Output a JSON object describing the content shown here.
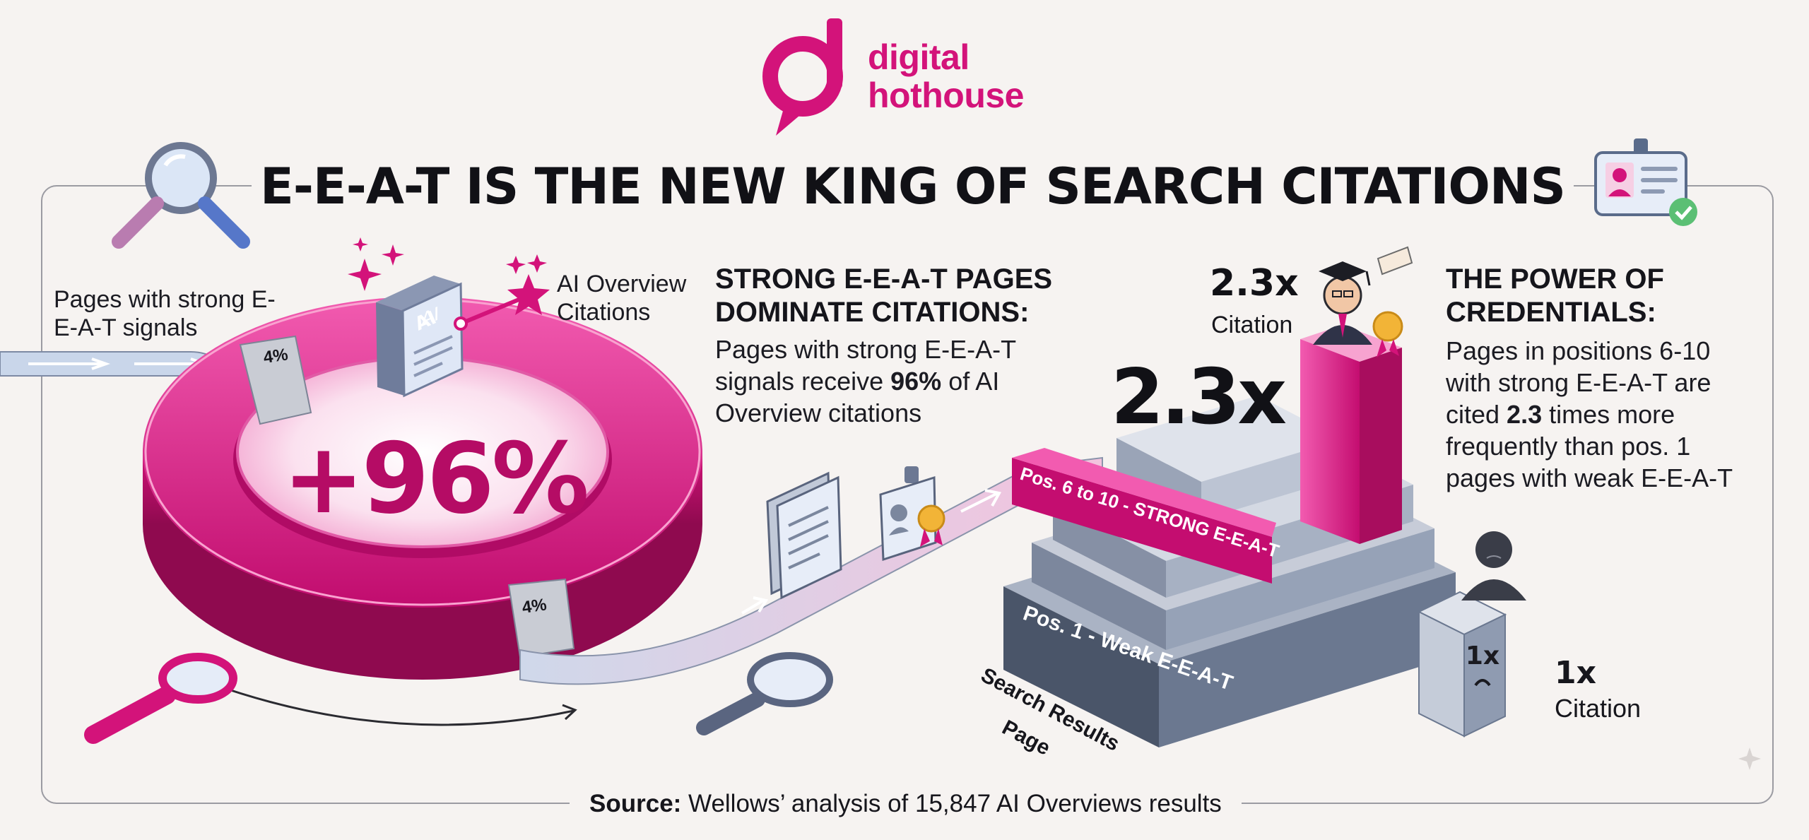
{
  "brand": {
    "name_line1": "digital",
    "name_line2": "hothouse",
    "color": "#d3137a"
  },
  "title": "E-E-A-T IS THE NEW KING OF SEARCH CITATIONS",
  "left_panel": {
    "input_label": "Pages with strong E-E-A-T signals",
    "ai_label": "AI Overview Citations",
    "ai_book_text": "AI",
    "main_stat": "+96%",
    "ring_tag_top": "4%",
    "ring_tag_bottom": "4%"
  },
  "middle_panel": {
    "heading": "STRONG E-E-A-T PAGES DOMINATE CITATIONS:",
    "body_pre": "Pages with strong E-E-A-T signals receive ",
    "body_bold": "96%",
    "body_post": " of AI Overview citations"
  },
  "right_panel": {
    "heading": "THE POWER OF CREDENTIALS:",
    "body_pre": "Pages in positions 6-10 with strong E-E-A-T are cited ",
    "body_bold": "2.3",
    "body_post": " times more frequently than pos. 1 pages with weak E-E-A-T"
  },
  "stairs": {
    "strong_band": "Pos. 6 to 10 - STRONG E-E-A-T",
    "weak_band": "Pos. 1 - Weak E-E-A-T",
    "floor_label": "Search Results Page",
    "big_multiplier": "2.3x",
    "top_multiplier": "2.3x",
    "top_caption": "Citation"
  },
  "weak_box": {
    "box_text": "1x",
    "multiplier": "1x",
    "caption": "Citation"
  },
  "source": {
    "label": "Source:",
    "text": " Wellows’ analysis of 15,847 AI Overviews results"
  },
  "colors": {
    "magenta": "#d3137a",
    "magenta_dark": "#a80d5e",
    "slate": "#6f7990",
    "slate_light": "#c7ccd8",
    "background": "#f6f3f1"
  },
  "icons": [
    "search-icon",
    "id-badge-icon",
    "book-icon",
    "star-icon",
    "document-icon",
    "certificate-icon",
    "graduate-icon",
    "person-icon",
    "magnifier-icon"
  ]
}
